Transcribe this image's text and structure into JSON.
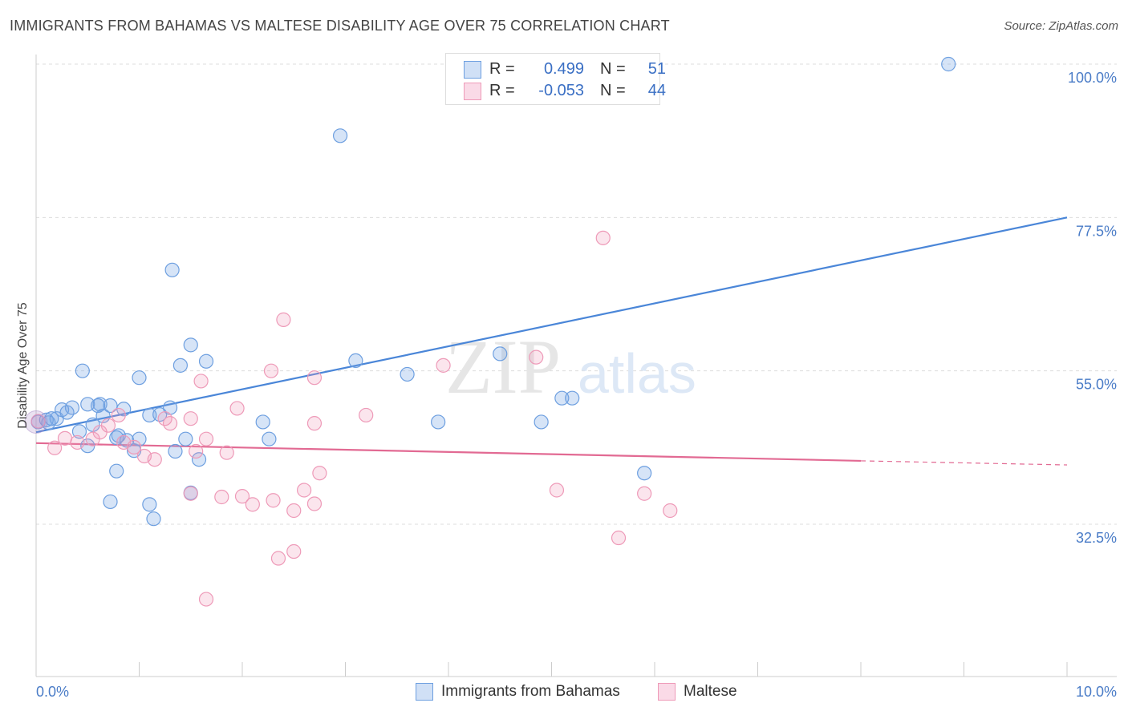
{
  "title": "IMMIGRANTS FROM BAHAMAS VS MALTESE DISABILITY AGE OVER 75 CORRELATION CHART",
  "source": "Source: ZipAtlas.com",
  "watermark": {
    "zip": "ZIP",
    "atlas": "atlas"
  },
  "colors": {
    "blue": "#4a86d8",
    "blue_fill": "rgba(120,165,230,0.30)",
    "blue_stroke": "#6d9fe0",
    "pink": "#e26a93",
    "pink_fill": "rgba(240,150,185,0.25)",
    "pink_stroke": "#ee9ab8",
    "tick_label": "#4a7cc7",
    "grid": "#dddddd"
  },
  "legend": {
    "rows": [
      {
        "r_label": "R =",
        "r_value": "0.499",
        "n_label": "N =",
        "n_value": "51"
      },
      {
        "r_label": "R =",
        "r_value": "-0.053",
        "n_label": "N =",
        "n_value": "44"
      }
    ]
  },
  "bottom_legend": {
    "series1": "Immigrants from Bahamas",
    "series2": "Maltese"
  },
  "chart_data": {
    "type": "scatter",
    "title": "IMMIGRANTS FROM BAHAMAS VS MALTESE DISABILITY AGE OVER 75 CORRELATION CHART",
    "xlabel": "",
    "ylabel": "Disability Age Over 75",
    "xlim": [
      0,
      10
    ],
    "ylim": [
      17,
      102
    ],
    "x_tick_labels": [
      "0.0%",
      "10.0%"
    ],
    "y_ticks": [
      {
        "value": 100,
        "label": "100.0%"
      },
      {
        "value": 77.5,
        "label": "77.5%"
      },
      {
        "value": 55,
        "label": "55.0%"
      },
      {
        "value": 32.5,
        "label": "32.5%"
      }
    ],
    "grid": "horizontal dashed",
    "series": [
      {
        "name": "Immigrants from Bahamas",
        "color": "#4a86d8",
        "trend": {
          "x0": 0,
          "y0": 46.0,
          "x1": 10,
          "y1": 77.5
        },
        "points": [
          [
            0.02,
            47.5
          ],
          [
            0.1,
            47.8
          ],
          [
            0.2,
            48.0
          ],
          [
            0.12,
            47.4
          ],
          [
            0.15,
            48.0
          ],
          [
            0.25,
            49.3
          ],
          [
            0.35,
            49.6
          ],
          [
            0.3,
            48.9
          ],
          [
            0.5,
            50.1
          ],
          [
            0.62,
            50.1
          ],
          [
            0.72,
            49.9
          ],
          [
            0.85,
            49.4
          ],
          [
            0.42,
            46.1
          ],
          [
            0.55,
            47.1
          ],
          [
            0.6,
            49.9
          ],
          [
            0.65,
            48.4
          ],
          [
            0.78,
            45.2
          ],
          [
            0.88,
            44.8
          ],
          [
            0.95,
            43.3
          ],
          [
            1.1,
            48.5
          ],
          [
            1.2,
            48.6
          ],
          [
            1.3,
            49.6
          ],
          [
            1.45,
            45.0
          ],
          [
            1.35,
            43.2
          ],
          [
            1.0,
            45.0
          ],
          [
            0.8,
            45.5
          ],
          [
            0.5,
            44.0
          ],
          [
            0.45,
            55.0
          ],
          [
            1.0,
            54.0
          ],
          [
            1.4,
            55.8
          ],
          [
            1.65,
            56.4
          ],
          [
            1.5,
            58.8
          ],
          [
            1.32,
            69.8
          ],
          [
            0.78,
            40.3
          ],
          [
            0.72,
            35.8
          ],
          [
            1.1,
            35.4
          ],
          [
            1.14,
            33.3
          ],
          [
            1.5,
            37.1
          ],
          [
            1.58,
            42.0
          ],
          [
            2.2,
            47.5
          ],
          [
            2.26,
            45.0
          ],
          [
            3.1,
            56.5
          ],
          [
            3.6,
            54.5
          ],
          [
            3.9,
            47.5
          ],
          [
            4.5,
            57.5
          ],
          [
            4.9,
            47.5
          ],
          [
            5.1,
            51.0
          ],
          [
            5.2,
            51.0
          ],
          [
            5.9,
            40.0
          ],
          [
            2.95,
            89.5
          ],
          [
            8.85,
            100.0
          ]
        ]
      },
      {
        "name": "Maltese",
        "color": "#e26a93",
        "trend": {
          "x0": 0,
          "y0": 44.4,
          "x1": 8.0,
          "y1": 41.8,
          "dashed_to_x": 10,
          "dashed_to_y": 41.2
        },
        "points": [
          [
            0.02,
            47.6
          ],
          [
            0.18,
            43.7
          ],
          [
            0.28,
            45.1
          ],
          [
            0.4,
            44.5
          ],
          [
            0.55,
            45.0
          ],
          [
            0.62,
            46.0
          ],
          [
            0.7,
            47.0
          ],
          [
            0.85,
            44.5
          ],
          [
            0.95,
            43.8
          ],
          [
            0.8,
            48.5
          ],
          [
            1.05,
            42.5
          ],
          [
            1.15,
            42.0
          ],
          [
            1.25,
            48.0
          ],
          [
            1.3,
            47.3
          ],
          [
            1.5,
            48.0
          ],
          [
            1.55,
            43.2
          ],
          [
            1.65,
            45.0
          ],
          [
            1.95,
            49.5
          ],
          [
            1.85,
            43.0
          ],
          [
            1.6,
            53.5
          ],
          [
            1.5,
            37.0
          ],
          [
            1.8,
            36.5
          ],
          [
            2.0,
            36.6
          ],
          [
            2.1,
            35.4
          ],
          [
            2.28,
            55.0
          ],
          [
            2.4,
            62.5
          ],
          [
            2.3,
            36.0
          ],
          [
            2.5,
            34.5
          ],
          [
            2.6,
            37.5
          ],
          [
            2.7,
            54.0
          ],
          [
            2.7,
            47.3
          ],
          [
            2.75,
            40.0
          ],
          [
            2.7,
            35.5
          ],
          [
            3.2,
            48.5
          ],
          [
            2.5,
            28.5
          ],
          [
            2.35,
            27.5
          ],
          [
            1.65,
            21.5
          ],
          [
            3.95,
            55.8
          ],
          [
            4.85,
            57.0
          ],
          [
            5.05,
            37.5
          ],
          [
            5.5,
            74.5
          ],
          [
            5.65,
            30.5
          ],
          [
            5.9,
            37.0
          ],
          [
            6.15,
            34.5
          ]
        ]
      }
    ]
  }
}
